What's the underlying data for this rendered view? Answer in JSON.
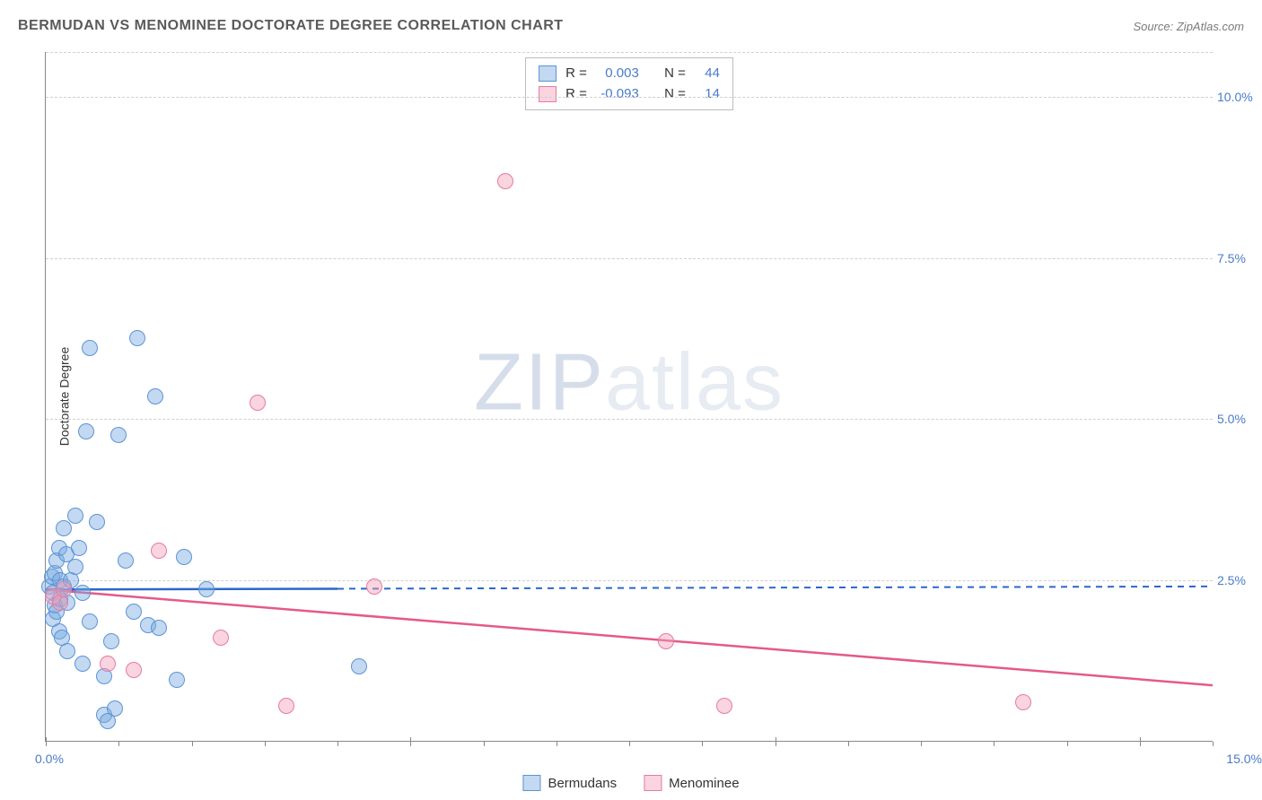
{
  "title": "BERMUDAN VS MENOMINEE DOCTORATE DEGREE CORRELATION CHART",
  "source": "Source: ZipAtlas.com",
  "watermark_zip": "ZIP",
  "watermark_atlas": "atlas",
  "y_axis_label": "Doctorate Degree",
  "chart": {
    "type": "scatter",
    "xlim": [
      0,
      16
    ],
    "ylim": [
      0,
      10.7
    ],
    "y_ticks": [
      2.5,
      5.0,
      7.5,
      10.0
    ],
    "y_tick_labels": [
      "2.5%",
      "5.0%",
      "7.5%",
      "10.0%"
    ],
    "x_major_ticks": [
      0,
      5,
      10,
      15
    ],
    "x_minor_step": 1,
    "x_origin_label": "0.0%",
    "x_max_label": "15.0%",
    "background_color": "#ffffff",
    "grid_color": "#d0d0d0",
    "series": [
      {
        "name": "Bermudans",
        "fill": "rgba(120,170,225,0.45)",
        "stroke": "#5c93d6",
        "marker_size": 16,
        "trend": {
          "slope": 0.003,
          "intercept": 2.35,
          "solid_until_x": 4.0,
          "color": "#2b67c9",
          "dash_color": "#2b67c9"
        },
        "R": "0.003",
        "N": "44",
        "points": [
          [
            0.05,
            2.4
          ],
          [
            0.08,
            2.55
          ],
          [
            0.1,
            2.3
          ],
          [
            0.1,
            1.9
          ],
          [
            0.12,
            2.6
          ],
          [
            0.12,
            2.1
          ],
          [
            0.15,
            2.8
          ],
          [
            0.15,
            2.0
          ],
          [
            0.18,
            3.0
          ],
          [
            0.18,
            1.7
          ],
          [
            0.2,
            2.5
          ],
          [
            0.2,
            2.2
          ],
          [
            0.22,
            1.6
          ],
          [
            0.25,
            2.4
          ],
          [
            0.25,
            3.3
          ],
          [
            0.28,
            2.9
          ],
          [
            0.3,
            2.15
          ],
          [
            0.3,
            1.4
          ],
          [
            0.35,
            2.5
          ],
          [
            0.4,
            2.7
          ],
          [
            0.4,
            3.5
          ],
          [
            0.45,
            3.0
          ],
          [
            0.5,
            2.3
          ],
          [
            0.5,
            1.2
          ],
          [
            0.55,
            4.8
          ],
          [
            0.6,
            6.1
          ],
          [
            0.6,
            1.85
          ],
          [
            0.7,
            3.4
          ],
          [
            0.8,
            1.0
          ],
          [
            0.8,
            0.4
          ],
          [
            0.85,
            0.3
          ],
          [
            0.9,
            1.55
          ],
          [
            0.95,
            0.5
          ],
          [
            1.0,
            4.75
          ],
          [
            1.1,
            2.8
          ],
          [
            1.2,
            2.0
          ],
          [
            1.25,
            6.25
          ],
          [
            1.4,
            1.8
          ],
          [
            1.5,
            5.35
          ],
          [
            1.55,
            1.75
          ],
          [
            1.8,
            0.95
          ],
          [
            1.9,
            2.85
          ],
          [
            2.2,
            2.35
          ],
          [
            4.3,
            1.15
          ]
        ]
      },
      {
        "name": "Menominee",
        "fill": "rgba(245,160,185,0.45)",
        "stroke": "#e57ba1",
        "marker_size": 16,
        "trend": {
          "slope": -0.093,
          "intercept": 2.35,
          "solid_until_x": 16.0,
          "color": "#e45a8a",
          "dash_color": "#e45a8a"
        },
        "R": "-0.093",
        "N": "14",
        "points": [
          [
            0.1,
            2.25
          ],
          [
            0.2,
            2.15
          ],
          [
            0.25,
            2.35
          ],
          [
            0.85,
            1.2
          ],
          [
            1.2,
            1.1
          ],
          [
            1.55,
            2.95
          ],
          [
            2.4,
            1.6
          ],
          [
            2.9,
            5.25
          ],
          [
            3.3,
            0.55
          ],
          [
            4.5,
            2.4
          ],
          [
            6.3,
            8.7
          ],
          [
            8.5,
            1.55
          ],
          [
            9.3,
            0.55
          ],
          [
            13.4,
            0.6
          ]
        ]
      }
    ]
  },
  "stats_labels": {
    "R": "R =",
    "N": "N ="
  },
  "legend_labels": [
    "Bermudans",
    "Menominee"
  ]
}
